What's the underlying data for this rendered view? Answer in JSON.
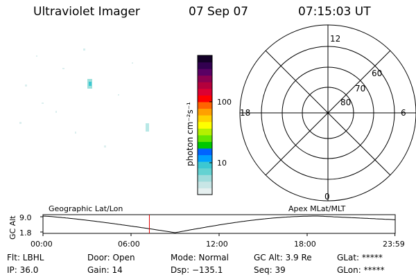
{
  "header": {
    "instrument": "Ultraviolet Imager",
    "date": "07 Sep 07",
    "time": "07:15:03 UT"
  },
  "colorbar": {
    "unit_label": "photon cm⁻²s⁻¹",
    "ticks": [
      {
        "label": "100",
        "value": 100
      },
      {
        "label": "10",
        "value": 10
      }
    ],
    "colors": [
      "#e6f0f0",
      "#c8e6e6",
      "#a0dcdc",
      "#64d2d2",
      "#3cc8d2",
      "#00a0ff",
      "#0064ff",
      "#00c800",
      "#64e600",
      "#b4f000",
      "#ffff00",
      "#ffd200",
      "#ffa000",
      "#ff6400",
      "#ff0000",
      "#dc0032",
      "#b4003c",
      "#8c0050",
      "#5a0064",
      "#320050",
      "#140028"
    ]
  },
  "polar_plot": {
    "mlt_labels": {
      "top": "12",
      "right": "6",
      "bottom": "0",
      "left": "18"
    },
    "lat_labels": [
      "60",
      "70",
      "80"
    ]
  },
  "timeline": {
    "left_label": "Geographic Lat/Lon",
    "right_label": "Apex MLat/MLT",
    "y_axis_title": "GC Alt",
    "y_ticks": [
      "9.0",
      "1.8"
    ],
    "x_ticks": [
      "00:00",
      "06:00",
      "12:00",
      "18:00",
      "23:59"
    ],
    "current_time_hours": 7.25,
    "marker_color": "#e00000"
  },
  "info": {
    "filter": "Flt: LBHL",
    "ip": "IP: 36.0",
    "door": "Door: Open",
    "gain": "Gain: 14",
    "mode": "Mode: Normal",
    "dsp": "Dsp: −135.1",
    "gc_alt": "GC Alt: 3.9 Re",
    "seq": "Seq: 39",
    "glat": "GLat: *****",
    "glon": "GLon: *****"
  }
}
